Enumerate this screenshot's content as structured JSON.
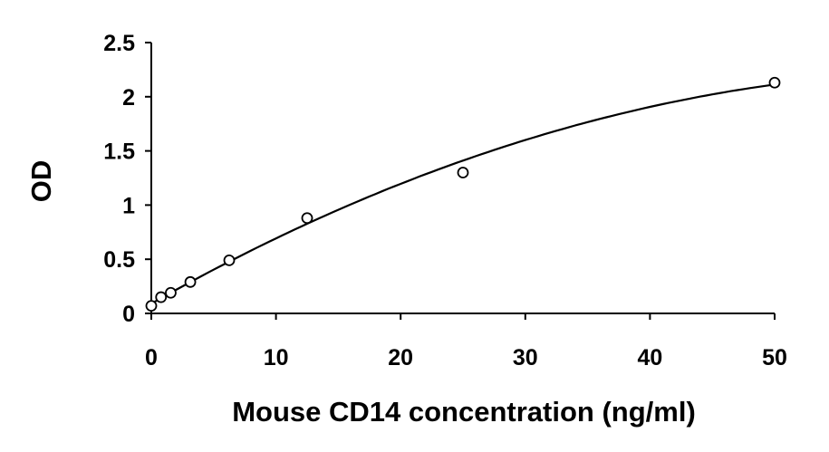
{
  "chart_data": {
    "type": "scatter",
    "xlabel": "Mouse CD14 concentration (ng/ml)",
    "ylabel": "OD",
    "xlim": [
      0,
      50
    ],
    "ylim": [
      0,
      2.5
    ],
    "x_ticks": [
      "0",
      "10",
      "20",
      "30",
      "40",
      "50"
    ],
    "y_ticks": [
      "0",
      "0.5",
      "1",
      "1.5",
      "2",
      "2.5"
    ],
    "grid": false,
    "legend": "none",
    "series": [
      {
        "points": [
          {
            "x": 0,
            "y": 0.07
          },
          {
            "x": 0.78,
            "y": 0.15
          },
          {
            "x": 1.56,
            "y": 0.19
          },
          {
            "x": 3.13,
            "y": 0.29
          },
          {
            "x": 6.25,
            "y": 0.49
          },
          {
            "x": 12.5,
            "y": 0.88
          },
          {
            "x": 25,
            "y": 1.3
          },
          {
            "x": 50,
            "y": 2.13
          }
        ]
      }
    ],
    "fit": {
      "type": "polynomial-2",
      "coefficients": [
        0.09,
        0.0652,
        -0.000495
      ]
    }
  }
}
